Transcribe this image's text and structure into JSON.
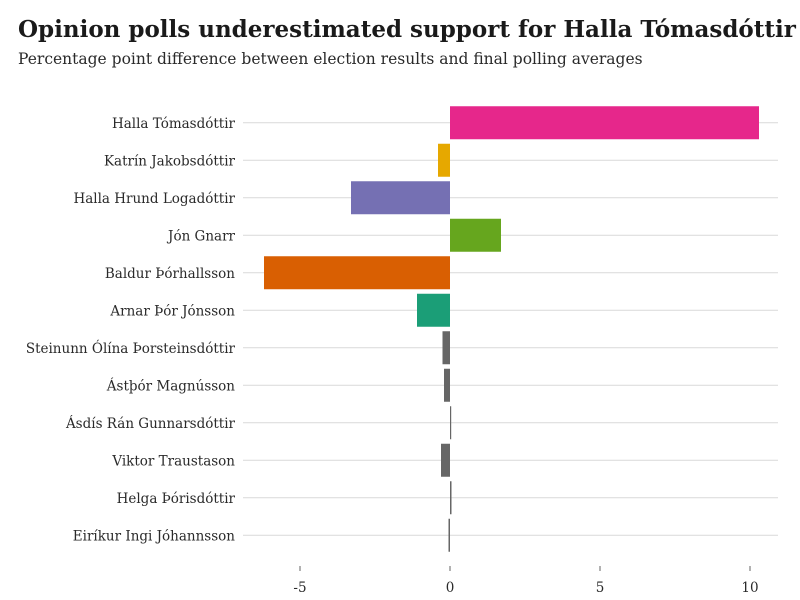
{
  "title": "Opinion polls underestimated support for Halla Tómasdóttir",
  "subtitle": "Percentage point difference between election results and final polling averages",
  "chart_data": {
    "type": "bar",
    "orientation": "horizontal",
    "title": "Opinion polls underestimated support for Halla Tómasdóttir",
    "subtitle": "Percentage point difference between election results and final polling averages",
    "categories": [
      "Halla Tómasdóttir",
      "Katrín Jakobsdóttir",
      "Halla Hrund Logadóttir",
      "Jón Gnarr",
      "Baldur Þórhallsson",
      "Arnar Þór Jónsson",
      "Steinunn Ólína Þorsteinsdóttir",
      "Ástþór Magnússon",
      "Ásdís Rán Gunnarsdóttir",
      "Viktor Traustason",
      "Helga Þórisdóttir",
      "Eiríkur Ingi Jóhannsson"
    ],
    "values": [
      10.3,
      -0.4,
      -3.3,
      1.7,
      -6.2,
      -1.1,
      -0.25,
      -0.2,
      0.0,
      -0.3,
      0.05,
      -0.05
    ],
    "colors": [
      "#e6278b",
      "#e6a800",
      "#7570b3",
      "#66a61e",
      "#d95f02",
      "#1b9e77",
      "#666666",
      "#666666",
      "#666666",
      "#666666",
      "#666666",
      "#666666"
    ],
    "xlim": [
      -6.5,
      10.5
    ],
    "xticks": [
      -5,
      0,
      5,
      10
    ],
    "xlabel": "",
    "ylabel": "",
    "grid": "horizontal"
  }
}
